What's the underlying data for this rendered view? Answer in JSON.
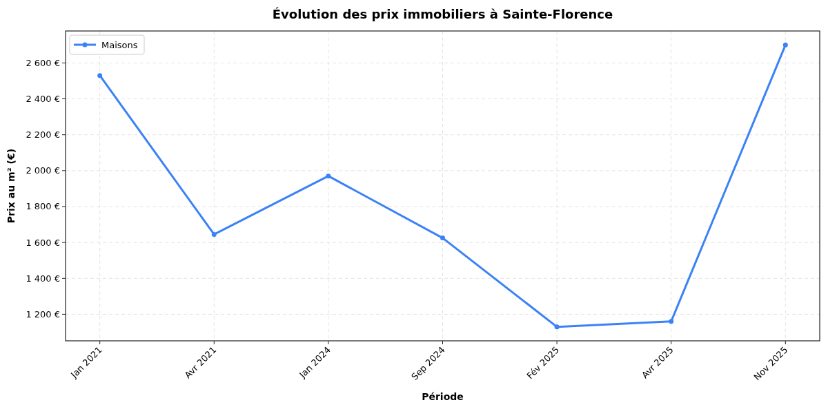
{
  "chart_data": {
    "type": "line",
    "title": "Évolution des prix immobiliers à Sainte-Florence",
    "xlabel": "Période",
    "ylabel": "Prix au m² (€)",
    "categories": [
      "Jan 2021",
      "Avr 2021",
      "Jan 2024",
      "Sep 2024",
      "Fév 2025",
      "Avr 2025",
      "Nov 2025"
    ],
    "series": [
      {
        "name": "Maisons",
        "color": "#3b82f6",
        "values": [
          2530,
          1645,
          1970,
          1625,
          1130,
          1160,
          2700
        ]
      }
    ],
    "ylim": [
      1052,
      2778
    ],
    "yticks": [
      {
        "value": 1200,
        "label": "1 200 €"
      },
      {
        "value": 1400,
        "label": "1 400 €"
      },
      {
        "value": 1600,
        "label": "1 600 €"
      },
      {
        "value": 1800,
        "label": "1 800 €"
      },
      {
        "value": 2000,
        "label": "2 000 €"
      },
      {
        "value": 2200,
        "label": "2 200 €"
      },
      {
        "value": 2400,
        "label": "2 400 €"
      },
      {
        "value": 2600,
        "label": "2 600 €"
      }
    ],
    "grid": true,
    "legend": "top left",
    "marker": "circle",
    "line_style": "solid"
  }
}
